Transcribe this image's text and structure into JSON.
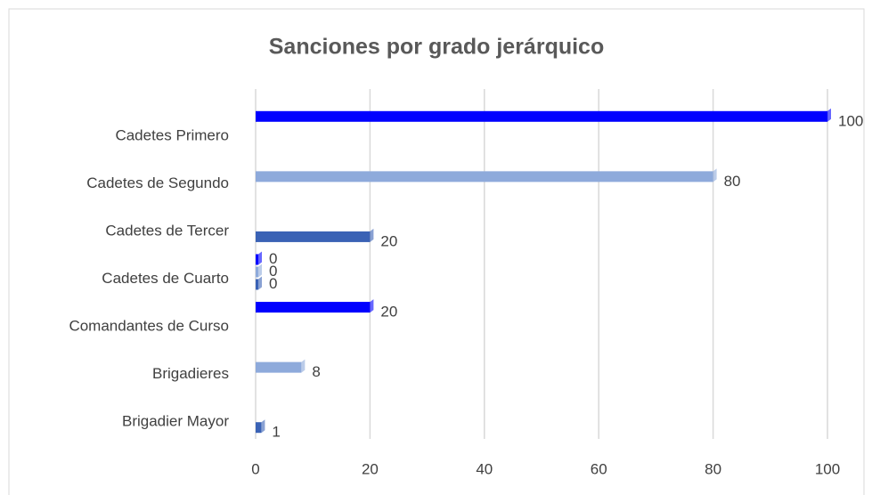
{
  "chart_data": {
    "type": "bar",
    "orientation": "horizontal",
    "title": "Sanciones por  grado jerárquico",
    "categories": [
      "Cadetes Primero",
      "Cadetes de Segundo",
      "Cadetes de Tercer",
      "Cadetes de Cuarto",
      "Comandantes de Curso",
      "Brigadieres",
      "Brigadier Mayor"
    ],
    "series": [
      {
        "color": "#0000ff",
        "values": [
          100,
          null,
          null,
          0,
          20,
          null,
          null
        ]
      },
      {
        "color": "#8eaadb",
        "values": [
          null,
          80,
          null,
          0,
          null,
          8,
          null
        ]
      },
      {
        "color": "#3a62b5",
        "values": [
          null,
          null,
          20,
          0,
          null,
          null,
          1
        ]
      }
    ],
    "xlim": [
      0,
      100
    ],
    "xticks": [
      0,
      20,
      40,
      60,
      80,
      100
    ],
    "grid": true
  }
}
